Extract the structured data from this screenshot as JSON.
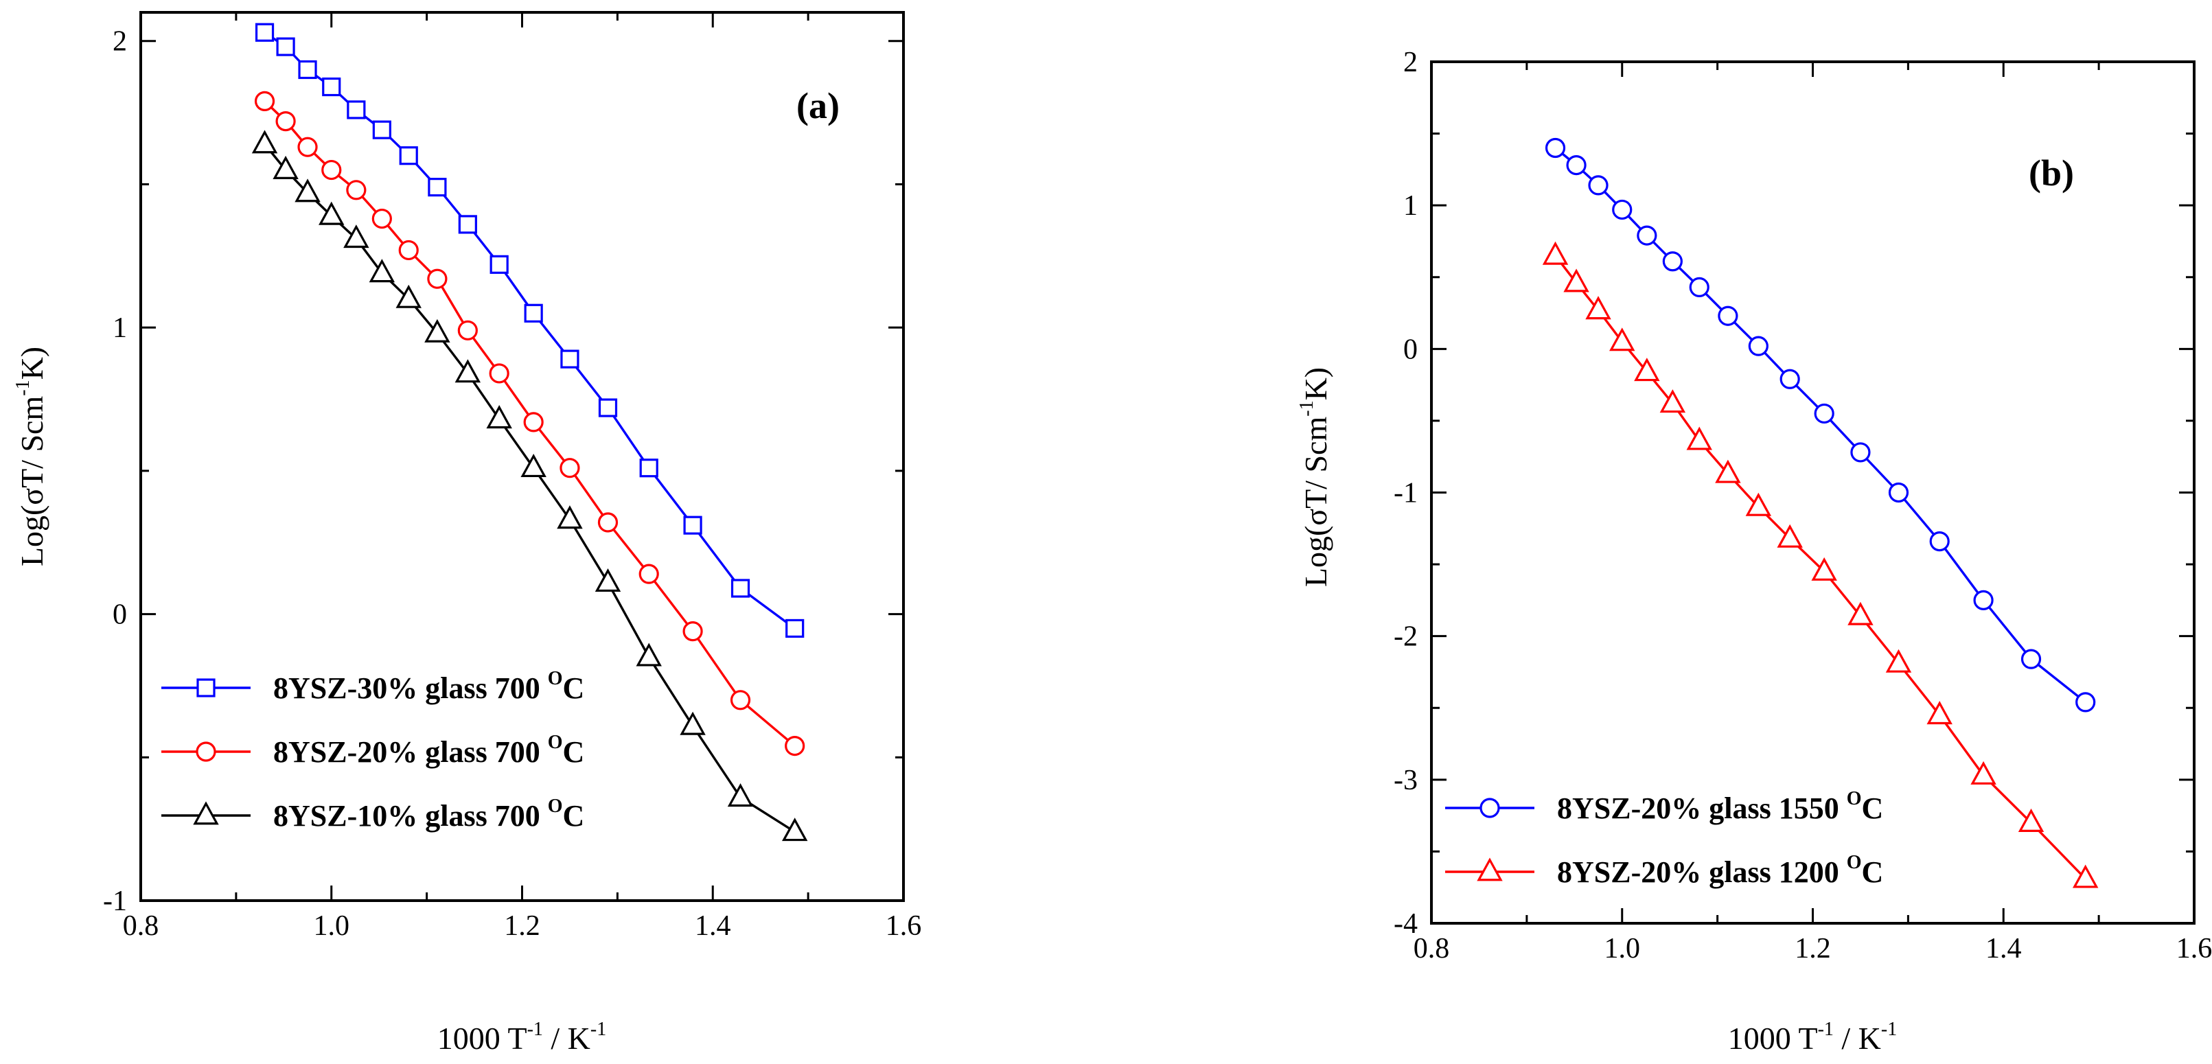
{
  "chart_data": [
    {
      "type": "line",
      "panel": "(a)",
      "xlabel": {
        "base": "1000 T",
        "sup1": "-1",
        "mid": " / K",
        "sup2": "-1"
      },
      "ylabel": {
        "base": "Log(σT/ Scm",
        "sup": "-1",
        "tail": "K)"
      },
      "xlim": [
        0.8,
        1.6
      ],
      "ylim": [
        -1,
        2.1
      ],
      "xticks": [
        0.8,
        1.0,
        1.2,
        1.4,
        1.6
      ],
      "xtick_labels": [
        "0.8",
        "1.0",
        "1.2",
        "1.4",
        "1.6"
      ],
      "yticks": [
        -1,
        0,
        1,
        2
      ],
      "ytick_labels": [
        "-1",
        "0",
        "1",
        "2"
      ],
      "legend_position": "lower-left",
      "series": [
        {
          "name": "8YSZ-30% glass  700",
          "unit_sup": "O",
          "unit": "C",
          "marker": "square",
          "color": "#0000ff",
          "x": [
            0.93,
            0.952,
            0.975,
            1.0,
            1.026,
            1.053,
            1.081,
            1.111,
            1.143,
            1.176,
            1.212,
            1.25,
            1.29,
            1.333,
            1.379,
            1.429,
            1.486
          ],
          "y": [
            2.03,
            1.98,
            1.9,
            1.84,
            1.76,
            1.69,
            1.6,
            1.49,
            1.36,
            1.22,
            1.05,
            0.89,
            0.72,
            0.51,
            0.31,
            0.09,
            -0.05
          ]
        },
        {
          "name": "8YSZ-20% glass  700",
          "unit_sup": "O",
          "unit": "C",
          "marker": "circle",
          "color": "#ff0000",
          "x": [
            0.93,
            0.952,
            0.975,
            1.0,
            1.026,
            1.053,
            1.081,
            1.111,
            1.143,
            1.176,
            1.212,
            1.25,
            1.29,
            1.333,
            1.379,
            1.429,
            1.486
          ],
          "y": [
            1.79,
            1.72,
            1.63,
            1.55,
            1.48,
            1.38,
            1.27,
            1.17,
            0.99,
            0.84,
            0.67,
            0.51,
            0.32,
            0.14,
            -0.06,
            -0.3,
            -0.46
          ]
        },
        {
          "name": "8YSZ-10% glass  700",
          "unit_sup": "O",
          "unit": "C",
          "marker": "triangle",
          "color": "#000000",
          "x": [
            0.93,
            0.952,
            0.975,
            1.0,
            1.026,
            1.053,
            1.081,
            1.111,
            1.143,
            1.176,
            1.212,
            1.25,
            1.29,
            1.333,
            1.379,
            1.429,
            1.486
          ],
          "y": [
            1.64,
            1.55,
            1.47,
            1.39,
            1.31,
            1.19,
            1.1,
            0.98,
            0.84,
            0.68,
            0.51,
            0.33,
            0.11,
            -0.15,
            -0.39,
            -0.64,
            -0.76
          ]
        }
      ]
    },
    {
      "type": "line",
      "panel": "(b)",
      "xlabel": {
        "base": "1000 T",
        "sup1": "-1",
        "mid": " / K",
        "sup2": "-1"
      },
      "ylabel": {
        "base": "Log(σT/ Scm",
        "sup": "-1",
        "tail": "K)"
      },
      "xlim": [
        0.8,
        1.6
      ],
      "ylim": [
        -4,
        2
      ],
      "xticks": [
        0.8,
        1.0,
        1.2,
        1.4,
        1.6
      ],
      "xtick_labels": [
        "0.8",
        "1.0",
        "1.2",
        "1.4",
        "1.6"
      ],
      "yticks": [
        -4,
        -3,
        -2,
        -1,
        0,
        1,
        2
      ],
      "ytick_labels": [
        "-4",
        "-3",
        "-2",
        "-1",
        "0",
        "1",
        "2"
      ],
      "legend_position": "lower-left",
      "series": [
        {
          "name": "8YSZ-20% glass  1550",
          "unit_sup": "O",
          "unit": "C",
          "marker": "circle",
          "color": "#0000ff",
          "x": [
            0.93,
            0.952,
            0.975,
            1.0,
            1.026,
            1.053,
            1.081,
            1.111,
            1.143,
            1.176,
            1.212,
            1.25,
            1.29,
            1.333,
            1.379,
            1.429,
            1.486
          ],
          "y": [
            1.4,
            1.28,
            1.14,
            0.97,
            0.79,
            0.61,
            0.43,
            0.23,
            0.02,
            -0.21,
            -0.45,
            -0.72,
            -1.0,
            -1.34,
            -1.75,
            -2.16,
            -2.46
          ]
        },
        {
          "name": "8YSZ-20% glass  1200",
          "unit_sup": "O",
          "unit": "C",
          "marker": "triangle",
          "color": "#ff0000",
          "x": [
            0.93,
            0.952,
            0.975,
            1.0,
            1.026,
            1.053,
            1.081,
            1.111,
            1.143,
            1.176,
            1.212,
            1.25,
            1.29,
            1.333,
            1.379,
            1.429,
            1.486
          ],
          "y": [
            0.65,
            0.46,
            0.27,
            0.05,
            -0.16,
            -0.38,
            -0.64,
            -0.87,
            -1.1,
            -1.32,
            -1.55,
            -1.86,
            -2.19,
            -2.55,
            -2.97,
            -3.3,
            -3.69
          ]
        }
      ]
    }
  ]
}
